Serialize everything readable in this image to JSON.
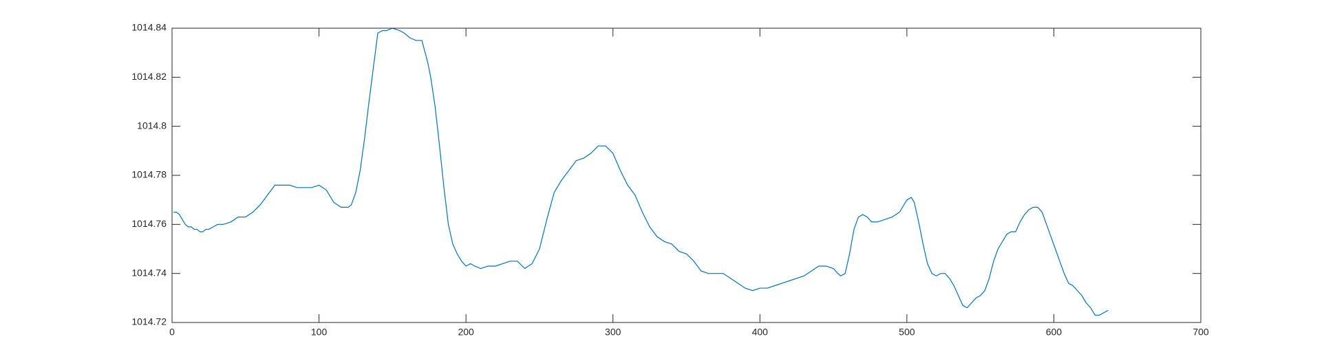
{
  "chart_data": {
    "type": "line",
    "title": "",
    "xlabel": "",
    "ylabel": "",
    "xlim": [
      0,
      700
    ],
    "ylim": [
      1014.72,
      1014.84
    ],
    "xticks": [
      0,
      100,
      200,
      300,
      400,
      500,
      600,
      700
    ],
    "xtick_labels": [
      "0",
      "100",
      "200",
      "300",
      "400",
      "500",
      "600",
      "700"
    ],
    "yticks": [
      1014.72,
      1014.74,
      1014.76,
      1014.78,
      1014.8,
      1014.82,
      1014.84
    ],
    "ytick_labels": [
      "1014.72",
      "1014.74",
      "1014.76",
      "1014.78",
      "1014.8",
      "1014.82",
      "1014.84"
    ],
    "grid": false,
    "box": true,
    "colors": {
      "line": "#0072BD",
      "axes": "#262626"
    },
    "series": [
      {
        "x": [
          1,
          3,
          5,
          7,
          9,
          11,
          13,
          15,
          17,
          19,
          21,
          23,
          25,
          28,
          31,
          35,
          40,
          45,
          50,
          55,
          60,
          65,
          70,
          75,
          80,
          85,
          90,
          95,
          100,
          105,
          110,
          115,
          120,
          122,
          125,
          128,
          131,
          134,
          137,
          140,
          143,
          146,
          150,
          155,
          158,
          162,
          166,
          170,
          174,
          176,
          179,
          182,
          185,
          188,
          191,
          194,
          197,
          200,
          203,
          206,
          210,
          215,
          220,
          225,
          230,
          235,
          240,
          245,
          250,
          255,
          260,
          265,
          270,
          275,
          280,
          285,
          290,
          295,
          300,
          305,
          310,
          315,
          320,
          325,
          330,
          335,
          340,
          345,
          350,
          355,
          360,
          365,
          370,
          375,
          380,
          385,
          390,
          395,
          400,
          405,
          410,
          415,
          420,
          425,
          430,
          435,
          440,
          445,
          450,
          453,
          455,
          458,
          461,
          464,
          467,
          470,
          473,
          476,
          480,
          485,
          490,
          495,
          500,
          503,
          505,
          508,
          511,
          514,
          517,
          520,
          523,
          526,
          529,
          532,
          535,
          538,
          541,
          544,
          547,
          550,
          553,
          556,
          559,
          562,
          565,
          568,
          571,
          574,
          577,
          580,
          583,
          586,
          589,
          592,
          595,
          598,
          601,
          604,
          607,
          610,
          613,
          616,
          619,
          622,
          625,
          628,
          631,
          634,
          637
        ],
        "y": [
          1014.765,
          1014.765,
          1014.764,
          1014.762,
          1014.76,
          1014.759,
          1014.759,
          1014.758,
          1014.758,
          1014.757,
          1014.757,
          1014.758,
          1014.758,
          1014.759,
          1014.76,
          1014.76,
          1014.761,
          1014.763,
          1014.763,
          1014.765,
          1014.768,
          1014.772,
          1014.776,
          1014.776,
          1014.776,
          1014.775,
          1014.775,
          1014.775,
          1014.776,
          1014.774,
          1014.769,
          1014.767,
          1014.767,
          1014.768,
          1014.773,
          1014.782,
          1014.795,
          1014.81,
          1014.824,
          1014.838,
          1014.839,
          1014.839,
          1014.84,
          1014.839,
          1014.838,
          1014.836,
          1014.835,
          1014.835,
          1014.826,
          1014.82,
          1014.808,
          1014.792,
          1014.775,
          1014.76,
          1014.752,
          1014.748,
          1014.745,
          1014.743,
          1014.744,
          1014.743,
          1014.742,
          1014.743,
          1014.743,
          1014.744,
          1014.745,
          1014.745,
          1014.742,
          1014.744,
          1014.75,
          1014.762,
          1014.773,
          1014.778,
          1014.782,
          1014.786,
          1014.787,
          1014.789,
          1014.792,
          1014.792,
          1014.789,
          1014.782,
          1014.776,
          1014.772,
          1014.765,
          1014.759,
          1014.755,
          1014.753,
          1014.752,
          1014.749,
          1014.748,
          1014.745,
          1014.741,
          1014.74,
          1014.74,
          1014.74,
          1014.738,
          1014.736,
          1014.734,
          1014.733,
          1014.734,
          1014.734,
          1014.735,
          1014.736,
          1014.737,
          1014.738,
          1014.739,
          1014.741,
          1014.743,
          1014.743,
          1014.742,
          1014.74,
          1014.739,
          1014.74,
          1014.748,
          1014.758,
          1014.763,
          1014.764,
          1014.763,
          1014.761,
          1014.761,
          1014.762,
          1014.763,
          1014.765,
          1014.77,
          1014.771,
          1014.769,
          1014.761,
          1014.752,
          1014.744,
          1014.74,
          1014.739,
          1014.74,
          1014.74,
          1014.738,
          1014.735,
          1014.731,
          1014.727,
          1014.726,
          1014.728,
          1014.73,
          1014.731,
          1014.733,
          1014.738,
          1014.745,
          1014.75,
          1014.753,
          1014.756,
          1014.757,
          1014.757,
          1014.761,
          1014.764,
          1014.766,
          1014.767,
          1014.767,
          1014.765,
          1014.76,
          1014.755,
          1014.75,
          1014.745,
          1014.74,
          1014.736,
          1014.735,
          1014.733,
          1014.731,
          1014.728,
          1014.726,
          1014.723,
          1014.723,
          1014.724,
          1014.725
        ]
      }
    ]
  }
}
